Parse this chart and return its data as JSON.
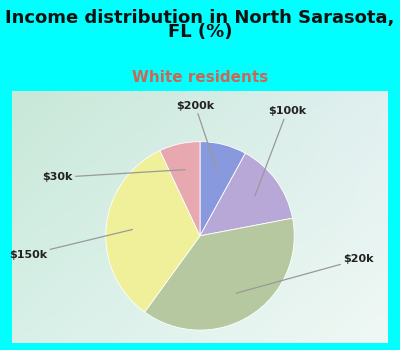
{
  "title_line1": "Income distribution in North Sarasota,",
  "title_line2": "FL (%)",
  "subtitle": "White residents",
  "slices": [
    {
      "label": "$200k",
      "value": 8,
      "color": "#8899dd"
    },
    {
      "label": "$100k",
      "value": 14,
      "color": "#b8a8d8"
    },
    {
      "label": "$20k",
      "value": 38,
      "color": "#b5c8a0"
    },
    {
      "label": "$150k",
      "value": 33,
      "color": "#f0f09a"
    },
    {
      "label": "$30k",
      "value": 7,
      "color": "#e8a8b0"
    }
  ],
  "startangle": 90,
  "bg_cyan": "#00ffff",
  "box_bg_tl": "#c8e8d8",
  "box_bg_br": "#e8f4ec",
  "title_color": "#111111",
  "title_fontsize": 13,
  "subtitle_color": "#cc6655",
  "subtitle_fontsize": 11,
  "label_fontsize": 8,
  "label_color": "#222222"
}
